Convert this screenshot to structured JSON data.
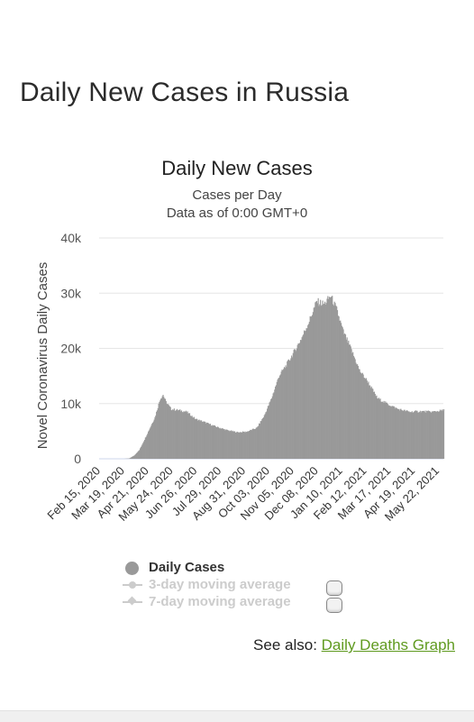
{
  "page": {
    "heading": "Daily New Cases in Russia"
  },
  "see_also": {
    "prefix": "See also:",
    "link_label": "Daily Deaths Graph"
  },
  "legend": {
    "items": [
      {
        "label": "Daily Cases",
        "active": true
      },
      {
        "label": "3-day moving average",
        "active": false
      },
      {
        "label": "7-day moving average",
        "active": false
      }
    ]
  },
  "colors": {
    "bars": "#999999",
    "grid": "#e6e6e6",
    "link": "#5f9a1f",
    "inactive": "#cccccc"
  },
  "chart_data": {
    "type": "bar",
    "title": "Daily New Cases",
    "subtitle": "Cases per Day",
    "subtitle2": "Data as of 0:00 GMT+0",
    "ylabel": "Novel Coronavirus Daily Cases",
    "xlabel": "",
    "ylim": [
      0,
      40000
    ],
    "yticks": [
      "0",
      "10k",
      "20k",
      "30k",
      "40k"
    ],
    "ytick_values": [
      0,
      10000,
      20000,
      30000,
      40000
    ],
    "xticks": [
      "Feb 15, 2020",
      "Mar 19, 2020",
      "Apr 21, 2020",
      "May 24, 2020",
      "Jun 26, 2020",
      "Jul 29, 2020",
      "Aug 31, 2020",
      "Oct 03, 2020",
      "Nov 05, 2020",
      "Dec 08, 2020",
      "Jan 10, 2021",
      "Feb 12, 2021",
      "Mar 17, 2021",
      "Apr 19, 2021",
      "May 22, 2021"
    ],
    "x_start": "2020-02-15",
    "x_end": "2021-05-26",
    "grid": true,
    "legend_placement": "bottom-center",
    "series": [
      {
        "name": "Daily Cases",
        "points": [
          [
            "2020-02-15",
            0
          ],
          [
            "2020-03-19",
            0
          ],
          [
            "2020-03-26",
            50
          ],
          [
            "2020-04-02",
            600
          ],
          [
            "2020-04-09",
            1600
          ],
          [
            "2020-04-16",
            3500
          ],
          [
            "2020-04-23",
            5500
          ],
          [
            "2020-04-30",
            7500
          ],
          [
            "2020-05-07",
            10800
          ],
          [
            "2020-05-11",
            11600
          ],
          [
            "2020-05-15",
            10300
          ],
          [
            "2020-05-22",
            9000
          ],
          [
            "2020-06-01",
            8800
          ],
          [
            "2020-06-12",
            8500
          ],
          [
            "2020-06-24",
            7200
          ],
          [
            "2020-07-05",
            6700
          ],
          [
            "2020-07-20",
            5900
          ],
          [
            "2020-08-05",
            5200
          ],
          [
            "2020-08-20",
            4800
          ],
          [
            "2020-09-01",
            4900
          ],
          [
            "2020-09-15",
            5600
          ],
          [
            "2020-09-25",
            7800
          ],
          [
            "2020-10-05",
            11000
          ],
          [
            "2020-10-15",
            15000
          ],
          [
            "2020-10-25",
            17000
          ],
          [
            "2020-11-05",
            19500
          ],
          [
            "2020-11-15",
            22000
          ],
          [
            "2020-11-25",
            25000
          ],
          [
            "2020-12-05",
            28500
          ],
          [
            "2020-12-15",
            28000
          ],
          [
            "2020-12-24",
            29500
          ],
          [
            "2021-01-01",
            27000
          ],
          [
            "2021-01-10",
            23000
          ],
          [
            "2021-01-20",
            20000
          ],
          [
            "2021-02-01",
            16000
          ],
          [
            "2021-02-12",
            14000
          ],
          [
            "2021-02-25",
            11000
          ],
          [
            "2021-03-10",
            10000
          ],
          [
            "2021-03-25",
            9000
          ],
          [
            "2021-04-10",
            8500
          ],
          [
            "2021-04-25",
            8600
          ],
          [
            "2021-05-10",
            8500
          ],
          [
            "2021-05-26",
            8800
          ]
        ]
      }
    ]
  }
}
